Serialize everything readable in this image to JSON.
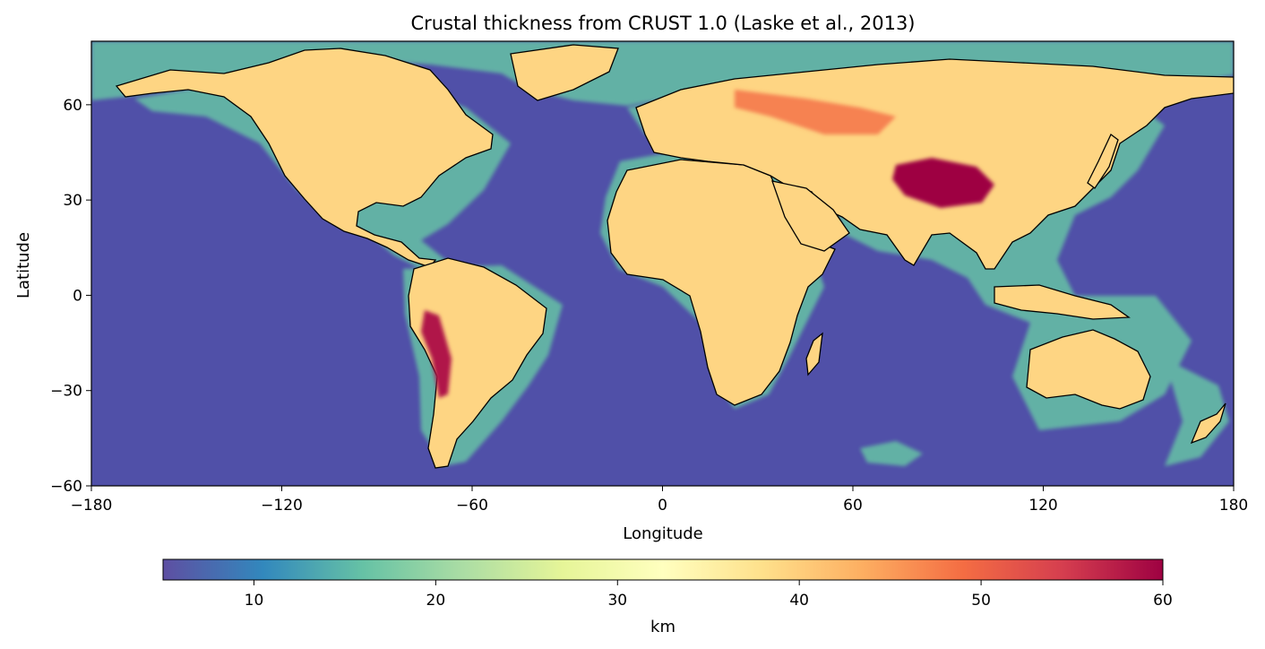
{
  "title": "Crustal thickness from CRUST 1.0 (Laske et al., 2013)",
  "map": {
    "xlabel": "Longitude",
    "ylabel": "Latitude",
    "x_ticks": [
      "−180",
      "−120",
      "−60",
      "0",
      "60",
      "120",
      "180"
    ],
    "x_tick_values": [
      -180,
      -120,
      -60,
      0,
      60,
      120,
      180
    ],
    "y_ticks": [
      "−60",
      "−30",
      "0",
      "30",
      "60"
    ],
    "y_tick_values": [
      -60,
      -30,
      0,
      30,
      60
    ],
    "xlim": [
      -180,
      180
    ],
    "ylim": [
      -60,
      80
    ],
    "colormap": "Spectral_r",
    "ocean_color": "#5050a8",
    "coastline_color": "#000000"
  },
  "colorbar": {
    "label": "km",
    "ticks": [
      "10",
      "20",
      "30",
      "40",
      "50",
      "60"
    ],
    "tick_values": [
      10,
      20,
      30,
      40,
      50,
      60
    ],
    "range": [
      5,
      60
    ],
    "colors": [
      "#5e4fa2",
      "#3288bd",
      "#66c2a5",
      "#abdda4",
      "#e6f598",
      "#ffffbf",
      "#fee08b",
      "#fdae61",
      "#f46d43",
      "#d53e4f",
      "#9e0142"
    ]
  }
}
